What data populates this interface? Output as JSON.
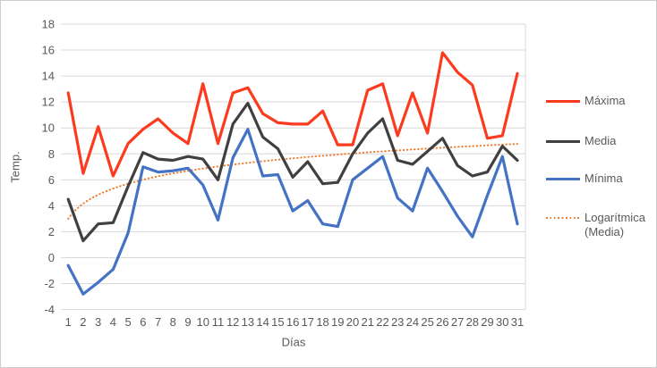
{
  "chart_data": {
    "type": "line",
    "title": "",
    "xlabel": "Días",
    "ylabel": "Temp.",
    "x": [
      1,
      2,
      3,
      4,
      5,
      6,
      7,
      8,
      9,
      10,
      11,
      12,
      13,
      14,
      15,
      16,
      17,
      18,
      19,
      20,
      21,
      22,
      23,
      24,
      25,
      26,
      27,
      28,
      29,
      30,
      31
    ],
    "ylim": [
      -4,
      18
    ],
    "yticks": [
      18,
      16,
      14,
      12,
      10,
      8,
      6,
      4,
      2,
      0,
      -2,
      -4
    ],
    "grid": true,
    "legend_position": "right",
    "series": [
      {
        "key": "maxima",
        "name": "Máxima",
        "color": "#fb3a1e",
        "values": [
          12.7,
          6.5,
          10.1,
          6.3,
          8.8,
          9.9,
          10.7,
          9.6,
          8.8,
          13.4,
          8.8,
          12.7,
          13.1,
          11.1,
          10.4,
          10.3,
          10.3,
          11.3,
          8.7,
          8.7,
          12.9,
          13.4,
          9.4,
          12.7,
          9.6,
          15.8,
          14.3,
          13.3,
          9.2,
          9.4,
          14.2
        ]
      },
      {
        "key": "media",
        "name": "Media",
        "color": "#404040",
        "values": [
          4.5,
          1.3,
          2.6,
          2.7,
          5.5,
          8.1,
          7.6,
          7.5,
          7.8,
          7.6,
          6.0,
          10.3,
          11.9,
          9.3,
          8.4,
          6.2,
          7.4,
          5.7,
          5.8,
          8.0,
          9.6,
          10.7,
          7.5,
          7.2,
          8.2,
          9.2,
          7.1,
          6.3,
          6.6,
          8.6,
          7.5
        ]
      },
      {
        "key": "minima",
        "name": "Mínima",
        "color": "#4472c4",
        "values": [
          -0.6,
          -2.8,
          -1.9,
          -0.9,
          1.9,
          7.0,
          6.6,
          6.7,
          6.9,
          5.6,
          2.9,
          7.7,
          9.9,
          6.3,
          6.4,
          3.6,
          4.4,
          2.6,
          2.4,
          6.0,
          6.9,
          7.8,
          4.6,
          3.6,
          6.9,
          5.1,
          3.2,
          1.6,
          4.8,
          7.8,
          2.6
        ]
      }
    ],
    "trendline": {
      "key": "logaritmica-media",
      "name": "Logarítmica (Media)",
      "legend_lines": [
        "Logarítmica",
        "(Media)"
      ],
      "color": "#ed7d31",
      "line_style": "dotted",
      "fit": "logarithmic",
      "a": 1.68,
      "b": 3.0,
      "x_range": [
        1,
        31
      ]
    },
    "palette": {
      "gridline": "#d9d9d9",
      "plot_border": "#d9d9d9",
      "axis_text": "#595959"
    }
  }
}
